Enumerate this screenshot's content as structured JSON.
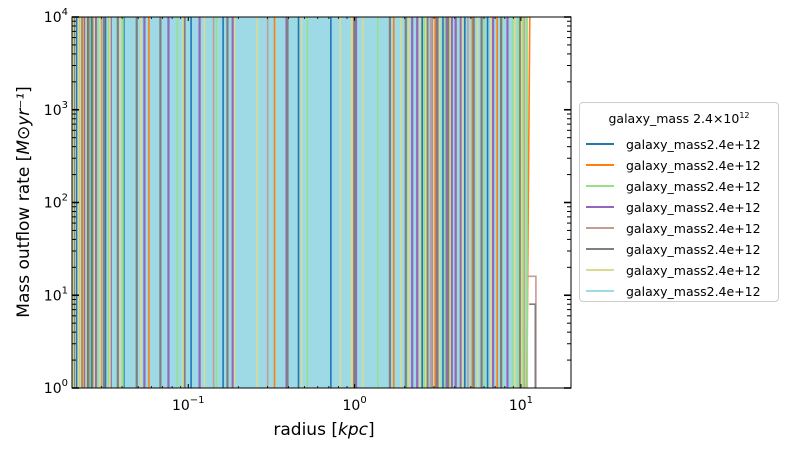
{
  "chart_data": {
    "type": "line",
    "xlabel_text": "radius ",
    "xlabel_unit": "kpc",
    "ylabel_text": "Mass outflow rate ",
    "ylabel_unit": "M⊙yr⁻¹",
    "xscale": "log",
    "yscale": "log",
    "xlim": [
      0.02,
      20
    ],
    "ylim": [
      1,
      10000
    ],
    "x_ticks": [
      {
        "value": 0.1,
        "base": "10",
        "exp": "−1"
      },
      {
        "value": 1,
        "base": "10",
        "exp": "0"
      },
      {
        "value": 10,
        "base": "10",
        "exp": "1"
      }
    ],
    "y_ticks": [
      {
        "value": 1,
        "base": "10",
        "exp": "0"
      },
      {
        "value": 10,
        "base": "10",
        "exp": "1"
      },
      {
        "value": 100,
        "base": "10",
        "exp": "2"
      },
      {
        "value": 1000,
        "base": "10",
        "exp": "3"
      },
      {
        "value": 10000,
        "base": "10",
        "exp": "4"
      }
    ],
    "legend": {
      "title_main": "galaxy_mass 2.4×10",
      "title_exp": "12",
      "placement": "outside-right"
    },
    "series": [
      {
        "name": "galaxy_mass2.4e+12",
        "color": "#1f77b4",
        "spikes": [
          0.0207,
          0.0213,
          0.0246,
          0.0262,
          0.0318,
          0.041,
          0.104,
          0.162,
          0.46,
          0.72,
          2.55,
          3.4,
          4.6,
          6.3
        ]
      },
      {
        "name": "galaxy_mass2.4e+12",
        "color": "#ff7f0e",
        "spikes": [
          0.0231,
          0.0298,
          0.058,
          0.33,
          0.99,
          1.72,
          3.05,
          5.1,
          7.2,
          10.4
        ],
        "tail": [
          [
            10.85,
            1
          ],
          [
            11.3,
            10000
          ]
        ]
      },
      {
        "name": "galaxy_mass2.4e+12",
        "color": "#98df8a",
        "spikes": [
          0.0209,
          0.0256,
          0.0285,
          0.0332,
          0.0405,
          0.086,
          0.148,
          0.52,
          1.38,
          2.05,
          2.62,
          3.48,
          4.1,
          6.0,
          7.7,
          8.9,
          9.6,
          10.3,
          10.9
        ]
      },
      {
        "name": "galaxy_mass2.4e+12",
        "color": "#9467bd",
        "spikes": [
          0.0205,
          0.0239,
          0.0278,
          0.0342,
          0.0545,
          0.076,
          0.117,
          0.185,
          0.39,
          1.02,
          2.22,
          2.38,
          2.95,
          3.12,
          3.58,
          3.84,
          4.05,
          4.35,
          6.8,
          8.3
        ]
      },
      {
        "name": "galaxy_mass2.4e+12",
        "color": "#c49c94",
        "spikes": [
          0.0221,
          0.0302,
          0.142,
          0.3,
          2.86,
          4.8
        ],
        "tail": [
          [
            10.95,
            16
          ],
          [
            12.3,
            16
          ],
          [
            12.3,
            1
          ]
        ]
      },
      {
        "name": "galaxy_mass2.4e+12",
        "color": "#7f7f7f",
        "spikes": [
          0.0227,
          0.0251,
          0.0266,
          0.0312,
          0.0377,
          0.049,
          0.068,
          0.095,
          0.172,
          0.395,
          1.0,
          1.63,
          2.03,
          2.74,
          3.15,
          3.67,
          5.2,
          5.8,
          7.6,
          9.9
        ],
        "tail": [
          [
            11.2,
            8
          ],
          [
            12.2,
            8
          ],
          [
            12.2,
            1
          ]
        ]
      },
      {
        "name": "galaxy_mass2.4e+12",
        "color": "#dbdb8d",
        "spikes": [
          0.0203,
          0.0219,
          0.0225,
          0.0243,
          0.0272,
          0.0295,
          0.0338,
          0.039,
          0.052,
          0.093,
          0.125,
          0.19,
          0.26,
          0.48,
          0.82,
          0.96,
          1.12,
          1.9,
          2.12,
          2.47,
          2.68,
          2.98,
          3.25,
          3.75,
          4.45,
          5.5,
          6.6,
          9.2,
          10.1
        ]
      },
      {
        "name": "galaxy_mass2.4e+12",
        "color": "#9edae5",
        "spikes": []
      }
    ]
  }
}
